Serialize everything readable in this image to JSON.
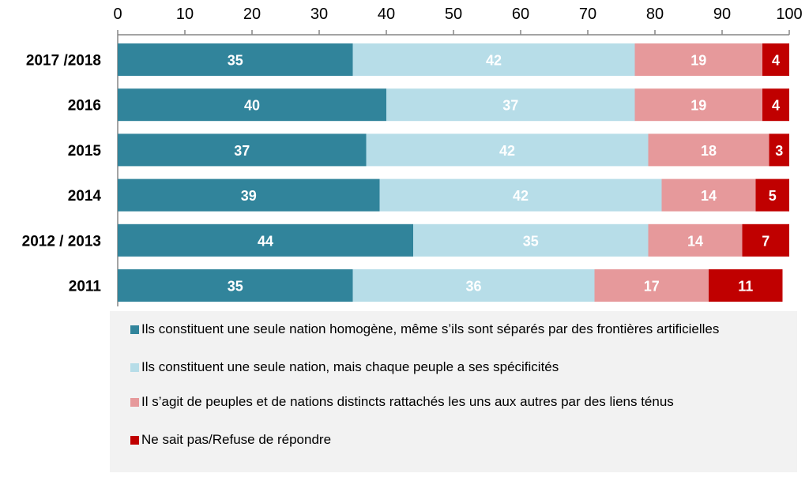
{
  "chart_data": {
    "type": "bar",
    "orientation": "horizontal",
    "stacked": true,
    "categories": [
      "2017 /2018",
      "2016",
      "2015",
      "2014",
      "2012 / 2013",
      "2011"
    ],
    "xlim": [
      0,
      100
    ],
    "x_ticks": [
      0,
      10,
      20,
      30,
      40,
      50,
      60,
      70,
      80,
      90,
      100
    ],
    "x_axis_position": "top",
    "grid": false,
    "legend_position": "bottom",
    "series": [
      {
        "name": "Ils constituent une seule nation homogène, même s’ils sont séparés par des frontières artificielles",
        "color": "#31849b",
        "values": [
          35,
          40,
          37,
          39,
          44,
          35
        ]
      },
      {
        "name": "Ils constituent une seule nation, mais chaque peuple a ses spécificités",
        "color": "#b7dde8",
        "values": [
          42,
          37,
          42,
          42,
          35,
          36
        ]
      },
      {
        "name": " Il s’agit de peuples et de nations distincts rattachés les uns aux autres par des liens ténus",
        "color": "#e6999b",
        "values": [
          19,
          19,
          18,
          14,
          14,
          17
        ]
      },
      {
        "name": "Ne sait pas/Refuse de répondre",
        "color": "#c00000",
        "values": [
          4,
          4,
          3,
          5,
          7,
          11
        ]
      }
    ]
  }
}
